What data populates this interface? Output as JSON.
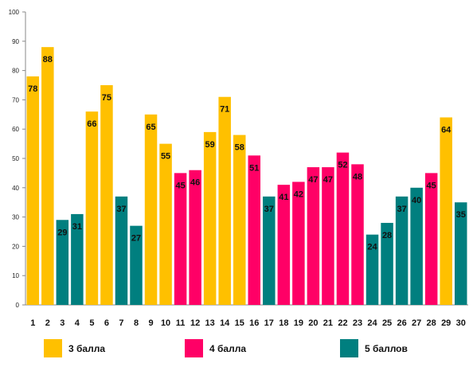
{
  "chart_data": {
    "type": "bar",
    "ylim": [
      0,
      100
    ],
    "yticks": [
      0,
      10,
      20,
      30,
      40,
      50,
      60,
      70,
      80,
      90,
      100
    ],
    "grid": false,
    "legend_position": "bottom",
    "categories": [
      "1",
      "2",
      "3",
      "4",
      "5",
      "6",
      "7",
      "8",
      "9",
      "10",
      "11",
      "12",
      "13",
      "14",
      "15",
      "16",
      "17",
      "18",
      "19",
      "20",
      "21",
      "22",
      "23",
      "24",
      "25",
      "26",
      "27",
      "28",
      "29",
      "30"
    ],
    "values": [
      78,
      88,
      29,
      31,
      66,
      75,
      37,
      27,
      65,
      55,
      45,
      46,
      59,
      71,
      58,
      51,
      37,
      41,
      42,
      47,
      47,
      52,
      48,
      24,
      28,
      37,
      40,
      45,
      64,
      35
    ],
    "groups": [
      0,
      0,
      2,
      2,
      0,
      0,
      2,
      2,
      0,
      0,
      1,
      1,
      0,
      0,
      0,
      1,
      2,
      1,
      1,
      1,
      1,
      1,
      1,
      2,
      2,
      2,
      2,
      1,
      0,
      2
    ],
    "series": [
      {
        "name": "3 балла",
        "color": "#FFC000"
      },
      {
        "name": "4 балла",
        "color": "#FF0066"
      },
      {
        "name": "5 баллов",
        "color": "#007F7F"
      }
    ]
  }
}
